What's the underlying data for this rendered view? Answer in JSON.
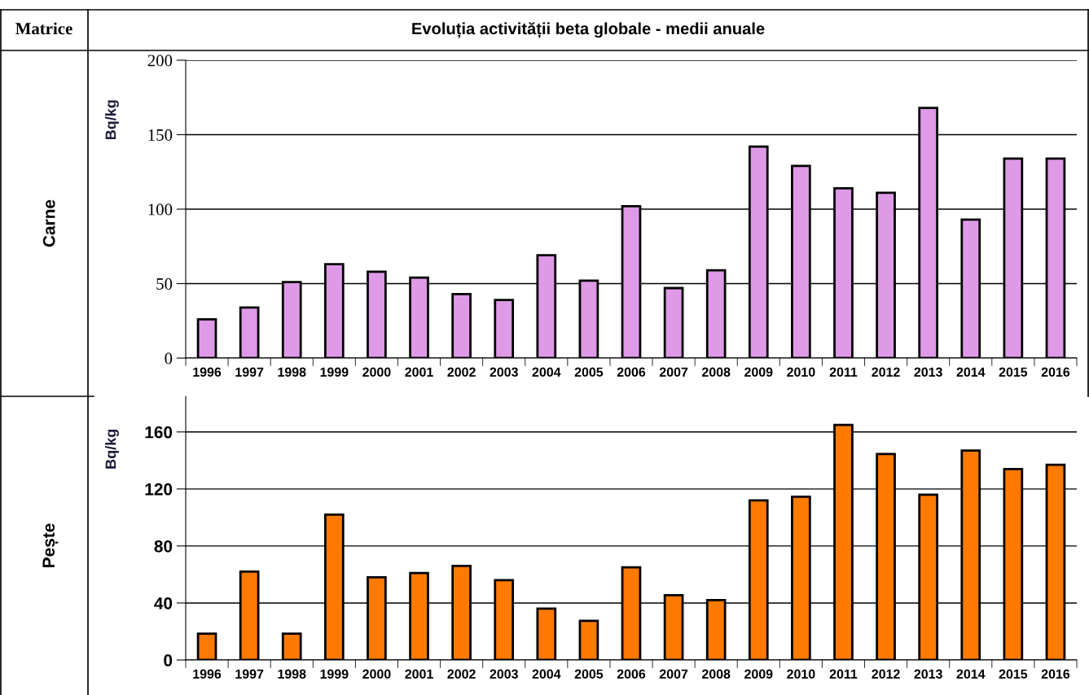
{
  "chart_data": [
    {
      "type": "bar",
      "title": "Evoluția activității beta globale - medii anuale",
      "ylabel": "Bq/kg",
      "annotations": [
        "Matrice",
        "Carne"
      ],
      "categories": [
        "1996",
        "1997",
        "1998",
        "1999",
        "2000",
        "2001",
        "2002",
        "2003",
        "2004",
        "2005",
        "2006",
        "2007",
        "2008",
        "2009",
        "2010",
        "2011",
        "2012",
        "2013",
        "2014",
        "2015",
        "2016"
      ],
      "values": [
        26,
        34,
        51,
        63,
        58,
        54,
        43,
        39,
        69,
        52,
        102,
        47,
        59,
        142,
        129,
        114,
        111,
        168,
        93,
        134,
        134
      ],
      "color": "#de9ae6",
      "ylim": [
        0,
        200
      ],
      "yticks": [
        0,
        50,
        100,
        150,
        200
      ],
      "grid": "y"
    },
    {
      "type": "bar",
      "ylabel": "Bq/kg",
      "annotations": [
        "Pește"
      ],
      "categories": [
        "1996",
        "1997",
        "1998",
        "1999",
        "2000",
        "2001",
        "2002",
        "2003",
        "2004",
        "2005",
        "2006",
        "2007",
        "2008",
        "2009",
        "2010",
        "2011",
        "2012",
        "2013",
        "2014",
        "2015",
        "2016"
      ],
      "values": [
        18.5,
        62,
        18.5,
        102,
        58,
        61,
        66,
        56,
        36,
        27.5,
        65,
        45.5,
        42,
        112,
        114.5,
        165,
        144.5,
        116,
        147,
        134,
        137
      ],
      "color": "#ff7a00",
      "ylim": [
        0,
        185
      ],
      "yticks": [
        0,
        40,
        80,
        120,
        160
      ],
      "grid": "y"
    }
  ]
}
